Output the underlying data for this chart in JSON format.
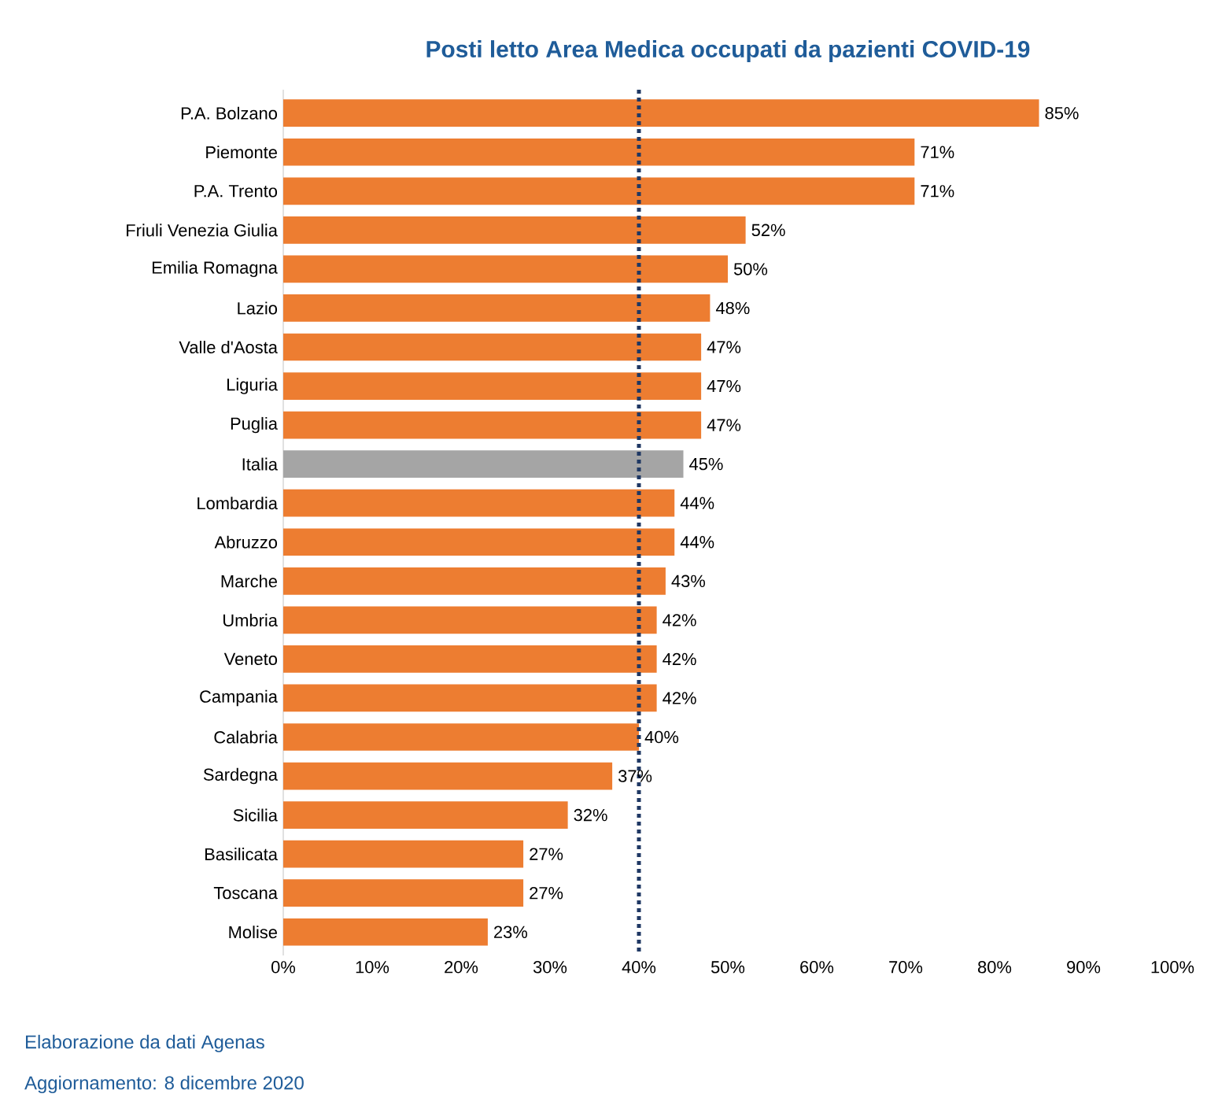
{
  "chart_data": {
    "type": "bar",
    "orientation": "horizontal",
    "title": "Posti letto Area Medica occupati da pazienti COVID-19",
    "categories": [
      "P.A. Bolzano",
      "Piemonte",
      "P.A. Trento",
      "Friuli Venezia Giulia",
      "Emilia Romagna",
      "Lazio",
      "Valle d'Aosta",
      "Liguria",
      "Puglia",
      "Italia",
      "Lombardia",
      "Abruzzo",
      "Marche",
      "Umbria",
      "Veneto",
      "Campania",
      "Calabria",
      "Sardegna",
      "Sicilia",
      "Basilicata",
      "Toscana",
      "Molise"
    ],
    "values": [
      85,
      71,
      71,
      52,
      50,
      48,
      47,
      47,
      47,
      45,
      44,
      44,
      43,
      42,
      42,
      42,
      40,
      37,
      32,
      27,
      27,
      23
    ],
    "colors": [
      "#ed7d31",
      "#ed7d31",
      "#ed7d31",
      "#ed7d31",
      "#ed7d31",
      "#ed7d31",
      "#ed7d31",
      "#ed7d31",
      "#ed7d31",
      "#a5a5a5",
      "#ed7d31",
      "#ed7d31",
      "#ed7d31",
      "#ed7d31",
      "#ed7d31",
      "#ed7d31",
      "#ed7d31",
      "#ed7d31",
      "#ed7d31",
      "#ed7d31",
      "#ed7d31",
      "#ed7d31"
    ],
    "value_labels": [
      "85%",
      "71%",
      "71%",
      "52%",
      "50%",
      "48%",
      "47%",
      "47%",
      "47%",
      "45%",
      "44%",
      "44%",
      "43%",
      "42%",
      "42%",
      "42%",
      "40%",
      "37%",
      "32%",
      "27%",
      "27%",
      "23%"
    ],
    "xlim": [
      0,
      100
    ],
    "xticks": [
      {
        "value": 0,
        "label": "0%"
      },
      {
        "value": 10,
        "label": "10%"
      },
      {
        "value": 20,
        "label": "20%"
      },
      {
        "value": 30,
        "label": "30%"
      },
      {
        "value": 40,
        "label": "40%"
      },
      {
        "value": 50,
        "label": "50%"
      },
      {
        "value": 60,
        "label": "60%"
      },
      {
        "value": 70,
        "label": "70%"
      },
      {
        "value": 80,
        "label": "80%"
      },
      {
        "value": 90,
        "label": "90%"
      },
      {
        "value": 100,
        "label": "100%"
      }
    ],
    "ref_lines": [
      {
        "axis": "x",
        "value": 40,
        "color": "#1f3864",
        "line_style": "dotted"
      }
    ],
    "annotations": [
      "Elaborazione da dati Agenas",
      "Aggiornamento:  8 dicembre 2020"
    ]
  }
}
